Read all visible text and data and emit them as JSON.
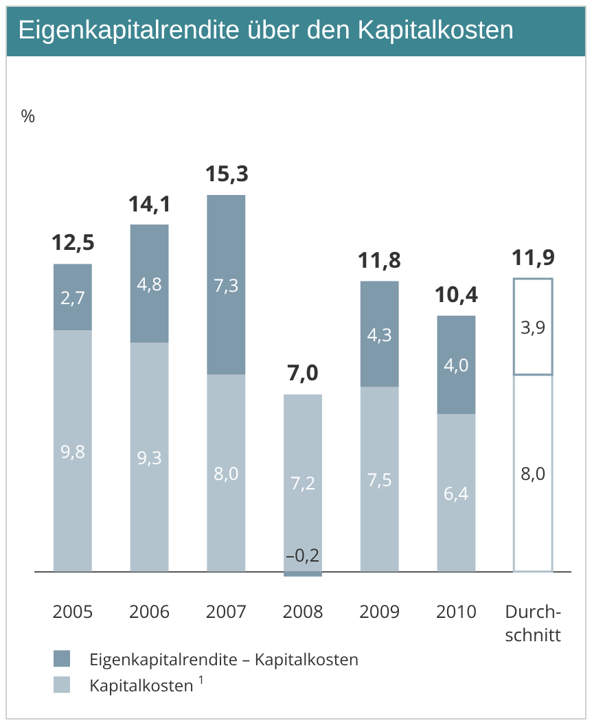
{
  "chart_data": {
    "type": "bar",
    "title": "Eigenkapitalrendite über den Kapitalkosten",
    "annotations": [
      "%"
    ],
    "categories": [
      "2005",
      "2006",
      "2007",
      "2008",
      "2009",
      "2010",
      "Durch-\nschnitt"
    ],
    "stacked": true,
    "series": [
      {
        "name": "Kapitalkosten $^{1}$",
        "color": "#b3c3cd",
        "colors": [
          "#b3c3cd",
          "#b3c3cd",
          "#b3c3cd",
          "#b3c3cd",
          "#b3c3cd",
          "#b3c3cd",
          "#ffffff"
        ],
        "values": [
          9.8,
          9.3,
          8.0,
          7.2,
          7.5,
          6.4,
          8.0
        ],
        "value_labels": [
          "9,8",
          "9,3",
          "8,0",
          "7,2",
          "7,5",
          "6,4",
          "8,0"
        ]
      },
      {
        "name": "Eigenkapitalrendite – Kapitalkosten",
        "color": "#7f9aab",
        "colors": [
          "#7f9aab",
          "#7f9aab",
          "#7f9aab",
          "#7f9aab",
          "#7f9aab",
          "#7f9aab",
          "#ffffff"
        ],
        "values": [
          2.7,
          4.8,
          7.3,
          -0.2,
          4.3,
          4.0,
          3.9
        ],
        "value_labels": [
          "2,7",
          "4,8",
          "7,3",
          "–0,2",
          "4,3",
          "4,0",
          "3,9"
        ]
      }
    ],
    "totals": [
      "12,5",
      "14,1",
      "15,3",
      "7,0",
      "11,8",
      "10,4",
      "11,9"
    ],
    "legend": "bottom",
    "grid": false,
    "tick_labels": "x"
  }
}
